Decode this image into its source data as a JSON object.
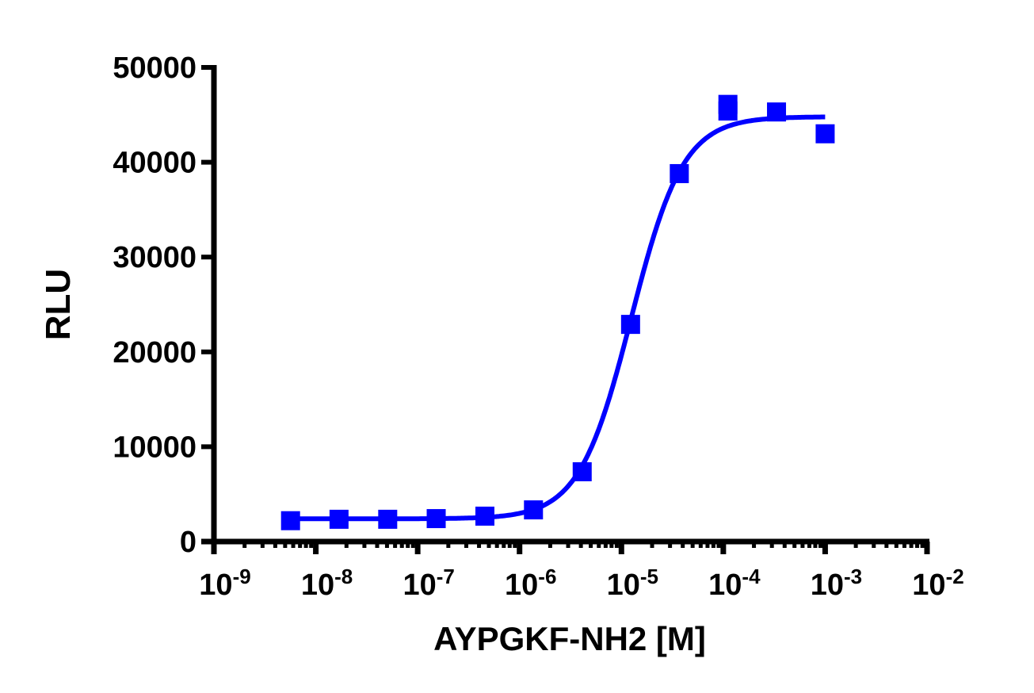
{
  "chart_data": {
    "type": "scatter",
    "xlabel": "AYPGKF-NH2 [M]",
    "ylabel": "RLU",
    "xscale": "log",
    "xlim": [
      1e-09,
      0.01
    ],
    "ylim": [
      0,
      50000
    ],
    "grid": false,
    "legend": "none",
    "x_tick_labels": [
      {
        "base": "10",
        "exp": "-9"
      },
      {
        "base": "10",
        "exp": "-8"
      },
      {
        "base": "10",
        "exp": "-7"
      },
      {
        "base": "10",
        "exp": "-6"
      },
      {
        "base": "10",
        "exp": "-5"
      },
      {
        "base": "10",
        "exp": "-4"
      },
      {
        "base": "10",
        "exp": "-3"
      },
      {
        "base": "10",
        "exp": "-2"
      }
    ],
    "y_tick_labels": [
      "0",
      "10000",
      "20000",
      "30000",
      "40000",
      "50000"
    ],
    "y_ticks": [
      0,
      10000,
      20000,
      30000,
      40000,
      50000
    ],
    "color": "#0000ff",
    "points": [
      {
        "x": 5.65e-09,
        "y": 2200
      },
      {
        "x": 1.69e-08,
        "y": 2350
      },
      {
        "x": 5.08e-08,
        "y": 2350
      },
      {
        "x": 1.52e-07,
        "y": 2420
      },
      {
        "x": 4.57e-07,
        "y": 2680
      },
      {
        "x": 1.37e-06,
        "y": 3340
      },
      {
        "x": 4.12e-06,
        "y": 7360
      },
      {
        "x": 1.23e-05,
        "y": 22900
      },
      {
        "x": 3.7e-05,
        "y": 38800
      },
      {
        "x": 0.000111,
        "y": 46100
      },
      {
        "x": 0.000111,
        "y": 45400
      },
      {
        "x": 0.000333,
        "y": 45300
      },
      {
        "x": 0.001,
        "y": 43000
      }
    ],
    "fit": {
      "model": "4PL",
      "bottom": 2400,
      "top": 44800,
      "ec50": 1.25e-05,
      "hill": 1.7,
      "x_range": [
        5.65e-09,
        0.001
      ]
    }
  }
}
